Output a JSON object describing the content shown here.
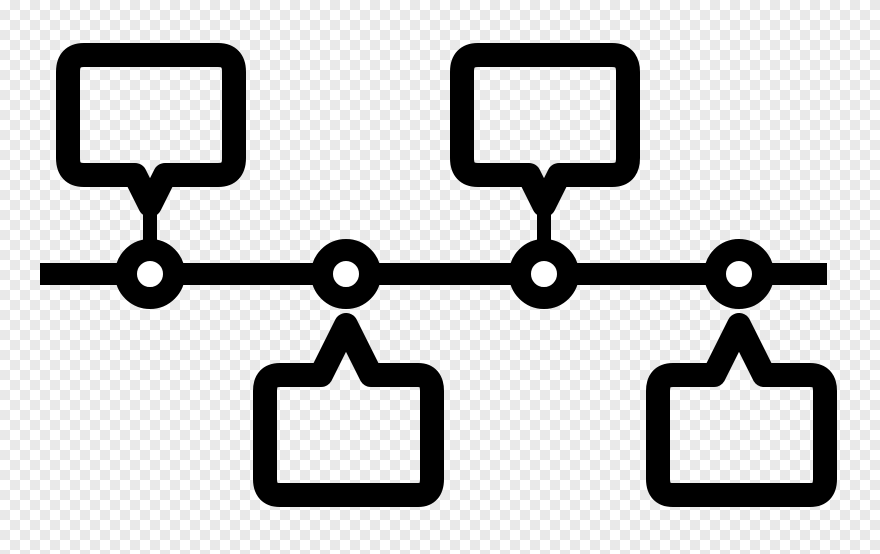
{
  "icon": {
    "name": "timeline-icon",
    "stroke_color": "#000000",
    "node_fill": "#ffffff",
    "background": "transparent-checkerboard",
    "nodes": 4,
    "callouts": [
      "above",
      "below",
      "above",
      "below"
    ]
  }
}
